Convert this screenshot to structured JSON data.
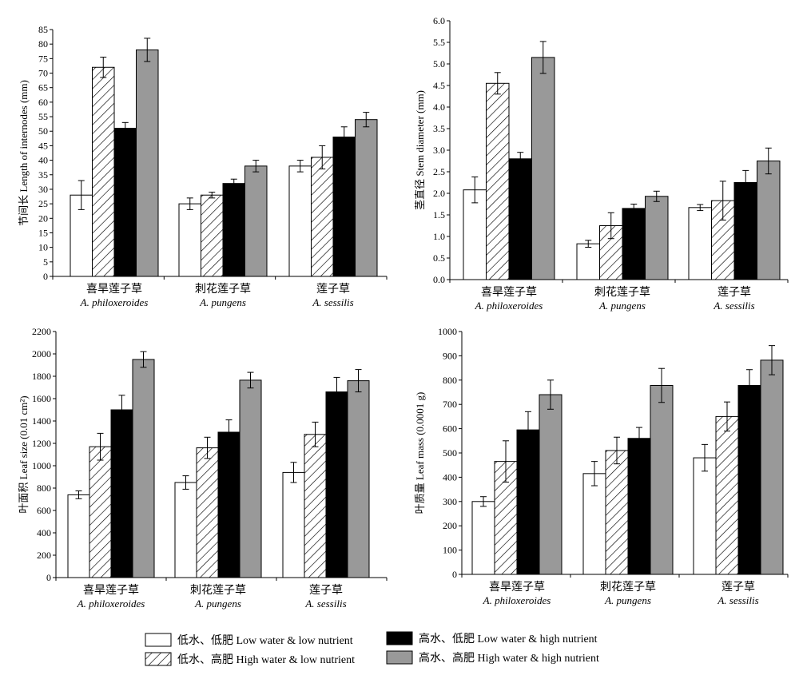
{
  "legend": [
    {
      "label": "低水、低肥  Low water & low nutrient",
      "fill": "#ffffff"
    },
    {
      "label": "低水、高肥  High water & low nutrient",
      "fill": "hatch"
    },
    {
      "label": "高水、低肥  Low water & high nutrient",
      "fill": "#000000"
    },
    {
      "label": "高水、高肥  High water & high nutrient",
      "fill": "#999999"
    }
  ],
  "chart_data": [
    {
      "type": "bar",
      "ylabel": "节间长  Length of internodes (mm)",
      "ylim": [
        0,
        85
      ],
      "yticks": [
        "0",
        "5",
        "10",
        "15",
        "20",
        "25",
        "30",
        "35",
        "40",
        "45",
        "50",
        "55",
        "60",
        "65",
        "70",
        "75",
        "80",
        "85"
      ],
      "categories": [
        {
          "cn": "喜旱莲子草",
          "en": "A. philoxeroides"
        },
        {
          "cn": "刺花莲子草",
          "en": "A. pungens"
        },
        {
          "cn": "莲子草",
          "en": "A. sessilis"
        }
      ],
      "series": [
        {
          "values": [
            28,
            25,
            38
          ],
          "errors": [
            5,
            2,
            2
          ]
        },
        {
          "values": [
            72,
            28,
            41
          ],
          "errors": [
            3.5,
            1,
            4
          ]
        },
        {
          "values": [
            51,
            32,
            48
          ],
          "errors": [
            2,
            1.5,
            3.5
          ]
        },
        {
          "values": [
            78,
            38,
            54
          ],
          "errors": [
            4,
            2,
            2.5
          ]
        }
      ]
    },
    {
      "type": "bar",
      "ylabel": "茎直径  Stem diameter (mm)",
      "ylim": [
        0,
        6
      ],
      "yticks": [
        "0.0",
        "0.5",
        "1.0",
        "1.5",
        "2.0",
        "2.5",
        "3.0",
        "3.5",
        "4.0",
        "4.5",
        "5.0",
        "5.5",
        "6.0"
      ],
      "categories": [
        {
          "cn": "喜旱莲子草",
          "en": "A. philoxeroides"
        },
        {
          "cn": "刺花莲子草",
          "en": "A. pungens"
        },
        {
          "cn": "莲子草",
          "en": "A. sessilis"
        }
      ],
      "series": [
        {
          "values": [
            2.08,
            0.83,
            1.67
          ],
          "errors": [
            0.3,
            0.08,
            0.07
          ]
        },
        {
          "values": [
            4.55,
            1.25,
            1.83
          ],
          "errors": [
            0.25,
            0.3,
            0.45
          ]
        },
        {
          "values": [
            2.8,
            1.65,
            2.25
          ],
          "errors": [
            0.15,
            0.1,
            0.28
          ]
        },
        {
          "values": [
            5.15,
            1.93,
            2.75
          ],
          "errors": [
            0.37,
            0.12,
            0.3
          ]
        }
      ]
    },
    {
      "type": "bar",
      "ylabel": "叶面积  Leaf size (0.01 cm²)",
      "ylim": [
        0,
        2200
      ],
      "yticks": [
        "0",
        "200",
        "400",
        "600",
        "800",
        "1000",
        "1200",
        "1400",
        "1600",
        "1800",
        "2000",
        "2200"
      ],
      "categories": [
        {
          "cn": "喜旱莲子草",
          "en": "A. philoxeroides"
        },
        {
          "cn": "刺花莲子草",
          "en": "A. pungens"
        },
        {
          "cn": "莲子草",
          "en": "A. sessilis"
        }
      ],
      "series": [
        {
          "values": [
            740,
            850,
            940
          ],
          "errors": [
            35,
            60,
            90
          ]
        },
        {
          "values": [
            1170,
            1160,
            1280
          ],
          "errors": [
            120,
            95,
            110
          ]
        },
        {
          "values": [
            1500,
            1300,
            1660
          ],
          "errors": [
            130,
            110,
            130
          ]
        },
        {
          "values": [
            1950,
            1765,
            1760
          ],
          "errors": [
            70,
            70,
            100
          ]
        }
      ]
    },
    {
      "type": "bar",
      "ylabel": "叶质量  Leaf mass (0.0001 g)",
      "ylim": [
        0,
        1000
      ],
      "yticks": [
        "0",
        "100",
        "200",
        "300",
        "400",
        "500",
        "600",
        "700",
        "800",
        "900",
        "1000"
      ],
      "categories": [
        {
          "cn": "喜旱莲子草",
          "en": "A. philoxeroides"
        },
        {
          "cn": "刺花莲子草",
          "en": "A. pungens"
        },
        {
          "cn": "莲子草",
          "en": "A. sessilis"
        }
      ],
      "series": [
        {
          "values": [
            300,
            415,
            480
          ],
          "errors": [
            20,
            50,
            55
          ]
        },
        {
          "values": [
            465,
            510,
            650
          ],
          "errors": [
            85,
            55,
            60
          ]
        },
        {
          "values": [
            595,
            560,
            778
          ],
          "errors": [
            75,
            45,
            65
          ]
        },
        {
          "values": [
            740,
            778,
            882
          ],
          "errors": [
            60,
            70,
            60
          ]
        }
      ]
    }
  ]
}
